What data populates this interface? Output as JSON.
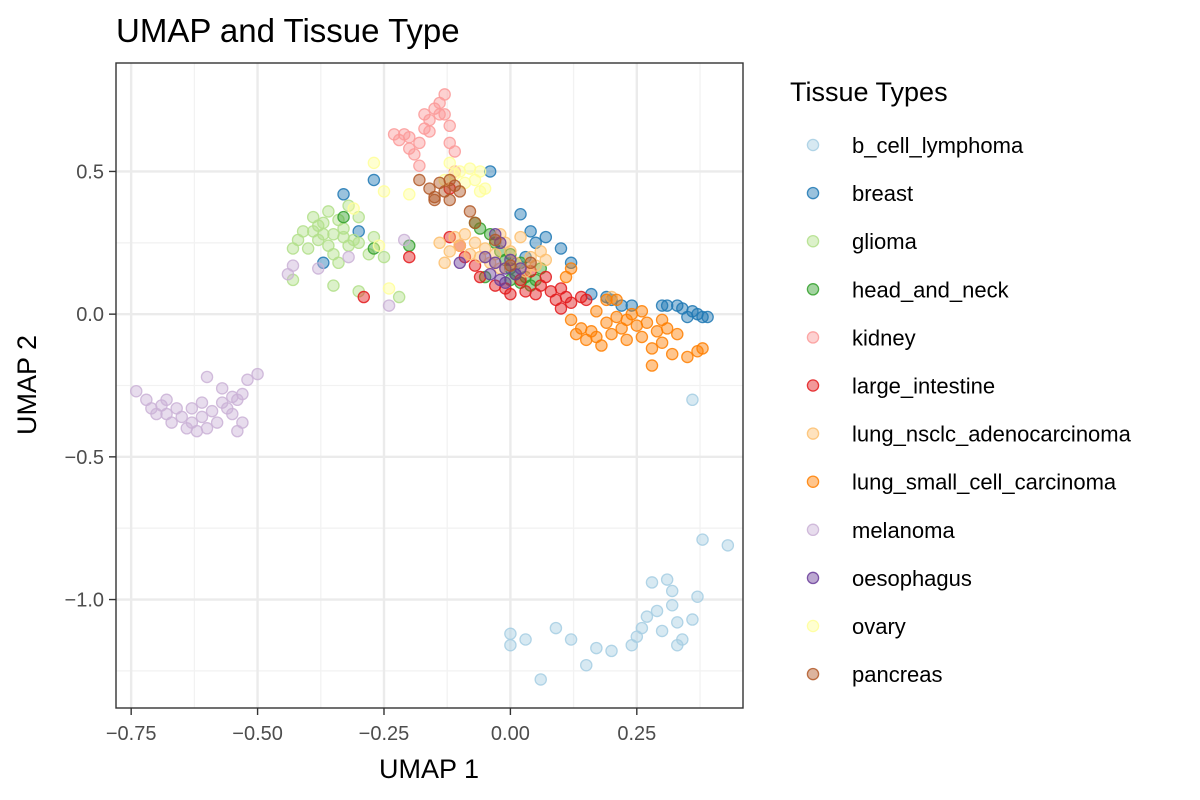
{
  "chart_data": {
    "type": "scatter",
    "title": "UMAP and Tissue Type",
    "xlabel": "UMAP 1",
    "ylabel": "UMAP 2",
    "xlim": [
      -0.78,
      0.46
    ],
    "ylim": [
      -1.38,
      0.88
    ],
    "x_ticks": [
      {
        "v": -0.75,
        "label": "−0.75"
      },
      {
        "v": -0.5,
        "label": "−0.50"
      },
      {
        "v": -0.25,
        "label": "−0.25"
      },
      {
        "v": 0.0,
        "label": "0.00"
      },
      {
        "v": 0.25,
        "label": "0.25"
      }
    ],
    "y_ticks": [
      {
        "v": 0.5,
        "label": "0.5"
      },
      {
        "v": 0.0,
        "label": "0.0"
      },
      {
        "v": -0.5,
        "label": "−0.5"
      },
      {
        "v": -1.0,
        "label": "−1.0"
      }
    ],
    "grid": true,
    "legend": {
      "title": "Tissue Types",
      "position": "right"
    },
    "series": [
      {
        "name": "b_cell_lymphoma",
        "color": "#A6CEE3",
        "points": [
          [
            0.0,
            -1.12
          ],
          [
            0.0,
            -1.16
          ],
          [
            0.03,
            -1.14
          ],
          [
            0.06,
            -1.28
          ],
          [
            0.09,
            -1.1
          ],
          [
            0.12,
            -1.14
          ],
          [
            0.15,
            -1.23
          ],
          [
            0.17,
            -1.17
          ],
          [
            0.2,
            -1.18
          ],
          [
            0.24,
            -1.16
          ],
          [
            0.25,
            -1.13
          ],
          [
            0.26,
            -1.1
          ],
          [
            0.27,
            -1.06
          ],
          [
            0.28,
            -0.94
          ],
          [
            0.29,
            -1.04
          ],
          [
            0.3,
            -1.11
          ],
          [
            0.31,
            -0.93
          ],
          [
            0.32,
            -1.02
          ],
          [
            0.32,
            -0.97
          ],
          [
            0.33,
            -1.08
          ],
          [
            0.33,
            -1.16
          ],
          [
            0.34,
            -1.14
          ],
          [
            0.36,
            -1.07
          ],
          [
            0.37,
            -0.99
          ],
          [
            0.38,
            -0.79
          ],
          [
            0.43,
            -0.81
          ],
          [
            0.36,
            -0.3
          ]
        ]
      },
      {
        "name": "breast",
        "color": "#1F78B4",
        "points": [
          [
            0.35,
            -0.01
          ],
          [
            0.36,
            0.01
          ],
          [
            0.37,
            0.0
          ],
          [
            0.38,
            -0.01
          ],
          [
            0.39,
            -0.01
          ],
          [
            0.34,
            0.02
          ],
          [
            0.33,
            0.03
          ],
          [
            0.31,
            0.03
          ],
          [
            0.3,
            0.03
          ],
          [
            0.24,
            0.03
          ],
          [
            0.22,
            0.03
          ],
          [
            0.2,
            0.05
          ],
          [
            0.19,
            0.06
          ],
          [
            0.16,
            0.07
          ],
          [
            0.12,
            0.18
          ],
          [
            0.1,
            0.23
          ],
          [
            0.07,
            0.27
          ],
          [
            0.05,
            0.25
          ],
          [
            0.04,
            0.29
          ],
          [
            0.02,
            0.35
          ],
          [
            0.03,
            0.2
          ],
          [
            -0.04,
            0.5
          ],
          [
            -0.27,
            0.47
          ],
          [
            -0.33,
            0.42
          ],
          [
            -0.37,
            0.18
          ],
          [
            -0.3,
            0.29
          ]
        ]
      },
      {
        "name": "glioma",
        "color": "#B2DF8A",
        "points": [
          [
            -0.43,
            0.12
          ],
          [
            -0.43,
            0.23
          ],
          [
            -0.42,
            0.26
          ],
          [
            -0.41,
            0.29
          ],
          [
            -0.4,
            0.23
          ],
          [
            -0.39,
            0.29
          ],
          [
            -0.39,
            0.34
          ],
          [
            -0.38,
            0.26
          ],
          [
            -0.38,
            0.31
          ],
          [
            -0.37,
            0.28
          ],
          [
            -0.37,
            0.32
          ],
          [
            -0.36,
            0.24
          ],
          [
            -0.36,
            0.36
          ],
          [
            -0.35,
            0.28
          ],
          [
            -0.35,
            0.21
          ],
          [
            -0.34,
            0.18
          ],
          [
            -0.34,
            0.33
          ],
          [
            -0.33,
            0.27
          ],
          [
            -0.33,
            0.3
          ],
          [
            -0.32,
            0.24
          ],
          [
            -0.32,
            0.38
          ],
          [
            -0.31,
            0.26
          ],
          [
            -0.3,
            0.25
          ],
          [
            -0.3,
            0.34
          ],
          [
            -0.35,
            0.1
          ],
          [
            -0.3,
            0.08
          ],
          [
            -0.27,
            0.27
          ],
          [
            -0.28,
            0.21
          ],
          [
            -0.25,
            0.2
          ],
          [
            -0.22,
            0.06
          ]
        ]
      },
      {
        "name": "head_and_neck",
        "color": "#33A02C",
        "points": [
          [
            -0.33,
            0.34
          ],
          [
            -0.27,
            0.23
          ],
          [
            -0.2,
            0.24
          ],
          [
            -0.07,
            0.32
          ],
          [
            -0.06,
            0.3
          ],
          [
            -0.04,
            0.28
          ],
          [
            -0.03,
            0.25
          ],
          [
            -0.02,
            0.22
          ],
          [
            -0.01,
            0.19
          ],
          [
            0.0,
            0.16
          ],
          [
            0.0,
            0.12
          ],
          [
            0.01,
            0.14
          ],
          [
            0.02,
            0.11
          ],
          [
            0.03,
            0.13
          ],
          [
            0.04,
            0.1
          ],
          [
            0.05,
            0.12
          ],
          [
            0.02,
            0.18
          ],
          [
            0.06,
            0.16
          ],
          [
            0.0,
            0.21
          ],
          [
            -0.05,
            0.13
          ]
        ]
      },
      {
        "name": "kidney",
        "color": "#FB9A99",
        "points": [
          [
            -0.23,
            0.63
          ],
          [
            -0.22,
            0.61
          ],
          [
            -0.21,
            0.63
          ],
          [
            -0.2,
            0.58
          ],
          [
            -0.2,
            0.62
          ],
          [
            -0.19,
            0.56
          ],
          [
            -0.18,
            0.6
          ],
          [
            -0.18,
            0.52
          ],
          [
            -0.17,
            0.65
          ],
          [
            -0.17,
            0.7
          ],
          [
            -0.16,
            0.64
          ],
          [
            -0.16,
            0.68
          ],
          [
            -0.15,
            0.72
          ],
          [
            -0.14,
            0.7
          ],
          [
            -0.14,
            0.74
          ],
          [
            -0.13,
            0.77
          ],
          [
            -0.13,
            0.7
          ],
          [
            -0.12,
            0.66
          ],
          [
            -0.12,
            0.6
          ],
          [
            -0.11,
            0.57
          ],
          [
            -0.11,
            0.5
          ]
        ]
      },
      {
        "name": "large_intestine",
        "color": "#E31A1C",
        "points": [
          [
            -0.29,
            0.06
          ],
          [
            -0.2,
            0.2
          ],
          [
            -0.12,
            0.27
          ],
          [
            -0.1,
            0.24
          ],
          [
            -0.09,
            0.2
          ],
          [
            -0.07,
            0.17
          ],
          [
            -0.06,
            0.13
          ],
          [
            -0.03,
            0.1
          ],
          [
            -0.01,
            0.09
          ],
          [
            0.0,
            0.07
          ],
          [
            0.02,
            0.12
          ],
          [
            0.03,
            0.08
          ],
          [
            0.05,
            0.07
          ],
          [
            0.06,
            0.1
          ],
          [
            0.08,
            0.08
          ],
          [
            0.09,
            0.05
          ],
          [
            0.1,
            0.09
          ],
          [
            0.11,
            0.06
          ],
          [
            0.12,
            0.04
          ],
          [
            0.14,
            0.06
          ],
          [
            0.15,
            0.05
          ],
          [
            0.1,
            0.02
          ],
          [
            0.04,
            0.15
          ],
          [
            0.07,
            0.13
          ],
          [
            -0.12,
            0.44
          ]
        ]
      },
      {
        "name": "lung_nsclc_adenocarcinoma",
        "color": "#FDBF6F",
        "points": [
          [
            -0.14,
            0.25
          ],
          [
            -0.12,
            0.22
          ],
          [
            -0.11,
            0.27
          ],
          [
            -0.1,
            0.24
          ],
          [
            -0.09,
            0.28
          ],
          [
            -0.08,
            0.21
          ],
          [
            -0.07,
            0.25
          ],
          [
            -0.06,
            0.2
          ],
          [
            -0.05,
            0.23
          ],
          [
            -0.04,
            0.18
          ],
          [
            -0.03,
            0.21
          ],
          [
            -0.02,
            0.16
          ],
          [
            -0.01,
            0.25
          ],
          [
            0.0,
            0.22
          ],
          [
            0.01,
            0.18
          ],
          [
            0.02,
            0.27
          ],
          [
            0.03,
            0.15
          ],
          [
            0.04,
            0.2
          ],
          [
            0.05,
            0.17
          ],
          [
            0.06,
            0.22
          ],
          [
            -0.13,
            0.18
          ],
          [
            -0.02,
            0.28
          ],
          [
            0.07,
            0.19
          ],
          [
            0.2,
            0.06
          ]
        ]
      },
      {
        "name": "lung_small_cell_carcinoma",
        "color": "#FF7F00",
        "points": [
          [
            0.12,
            -0.02
          ],
          [
            0.13,
            -0.07
          ],
          [
            0.14,
            -0.05
          ],
          [
            0.15,
            -0.09
          ],
          [
            0.16,
            -0.06
          ],
          [
            0.17,
            -0.08
          ],
          [
            0.18,
            -0.11
          ],
          [
            0.19,
            -0.03
          ],
          [
            0.2,
            -0.07
          ],
          [
            0.21,
            -0.01
          ],
          [
            0.22,
            -0.05
          ],
          [
            0.23,
            -0.09
          ],
          [
            0.24,
            0.0
          ],
          [
            0.25,
            -0.04
          ],
          [
            0.26,
            -0.08
          ],
          [
            0.27,
            -0.03
          ],
          [
            0.28,
            -0.12
          ],
          [
            0.29,
            -0.06
          ],
          [
            0.3,
            -0.1
          ],
          [
            0.31,
            -0.05
          ],
          [
            0.32,
            -0.14
          ],
          [
            0.33,
            -0.07
          ],
          [
            0.28,
            -0.18
          ],
          [
            0.37,
            -0.13
          ],
          [
            0.38,
            -0.12
          ],
          [
            0.35,
            -0.15
          ],
          [
            0.23,
            -0.02
          ],
          [
            0.19,
            0.05
          ],
          [
            0.17,
            0.01
          ],
          [
            0.21,
            0.05
          ],
          [
            0.12,
            0.16
          ],
          [
            0.11,
            0.13
          ],
          [
            0.26,
            0.01
          ],
          [
            0.3,
            -0.02
          ]
        ]
      },
      {
        "name": "melanoma",
        "color": "#CAB2D6",
        "points": [
          [
            -0.74,
            -0.27
          ],
          [
            -0.72,
            -0.3
          ],
          [
            -0.71,
            -0.33
          ],
          [
            -0.7,
            -0.35
          ],
          [
            -0.69,
            -0.32
          ],
          [
            -0.68,
            -0.3
          ],
          [
            -0.68,
            -0.35
          ],
          [
            -0.67,
            -0.38
          ],
          [
            -0.66,
            -0.33
          ],
          [
            -0.65,
            -0.36
          ],
          [
            -0.64,
            -0.4
          ],
          [
            -0.63,
            -0.33
          ],
          [
            -0.63,
            -0.38
          ],
          [
            -0.62,
            -0.41
          ],
          [
            -0.61,
            -0.36
          ],
          [
            -0.61,
            -0.31
          ],
          [
            -0.6,
            -0.22
          ],
          [
            -0.6,
            -0.4
          ],
          [
            -0.59,
            -0.34
          ],
          [
            -0.58,
            -0.38
          ],
          [
            -0.57,
            -0.31
          ],
          [
            -0.57,
            -0.26
          ],
          [
            -0.56,
            -0.33
          ],
          [
            -0.55,
            -0.35
          ],
          [
            -0.55,
            -0.29
          ],
          [
            -0.54,
            -0.3
          ],
          [
            -0.54,
            -0.41
          ],
          [
            -0.53,
            -0.38
          ],
          [
            -0.53,
            -0.28
          ],
          [
            -0.52,
            -0.23
          ],
          [
            -0.5,
            -0.21
          ],
          [
            -0.44,
            0.14
          ],
          [
            -0.43,
            0.17
          ],
          [
            -0.38,
            0.16
          ],
          [
            -0.32,
            0.2
          ],
          [
            -0.24,
            0.03
          ],
          [
            -0.21,
            0.26
          ]
        ]
      },
      {
        "name": "oesophagus",
        "color": "#6A3D9A",
        "points": [
          [
            -0.03,
            0.28
          ],
          [
            -0.02,
            0.25
          ],
          [
            -0.04,
            0.14
          ],
          [
            -0.03,
            0.18
          ],
          [
            -0.02,
            0.12
          ],
          [
            -0.01,
            0.16
          ],
          [
            0.0,
            0.19
          ],
          [
            0.01,
            0.14
          ],
          [
            -0.01,
            0.11
          ],
          [
            0.02,
            0.16
          ],
          [
            -0.05,
            0.2
          ],
          [
            -0.1,
            0.18
          ]
        ]
      },
      {
        "name": "ovary",
        "color": "#FFFF99",
        "points": [
          [
            -0.27,
            0.53
          ],
          [
            -0.25,
            0.43
          ],
          [
            -0.26,
            0.24
          ],
          [
            -0.13,
            0.47
          ],
          [
            -0.12,
            0.53
          ],
          [
            -0.11,
            0.49
          ],
          [
            -0.1,
            0.5
          ],
          [
            -0.09,
            0.46
          ],
          [
            -0.08,
            0.51
          ],
          [
            -0.07,
            0.47
          ],
          [
            -0.06,
            0.5
          ],
          [
            -0.05,
            0.44
          ],
          [
            -0.06,
            0.43
          ],
          [
            -0.31,
            0.37
          ],
          [
            -0.24,
            0.09
          ],
          [
            -0.2,
            0.42
          ]
        ]
      },
      {
        "name": "pancreas",
        "color": "#B15928",
        "points": [
          [
            -0.18,
            0.47
          ],
          [
            -0.16,
            0.44
          ],
          [
            -0.15,
            0.41
          ],
          [
            -0.14,
            0.46
          ],
          [
            -0.13,
            0.43
          ],
          [
            -0.12,
            0.47
          ],
          [
            -0.11,
            0.45
          ],
          [
            -0.1,
            0.43
          ],
          [
            -0.12,
            0.4
          ],
          [
            -0.15,
            0.4
          ],
          [
            -0.08,
            0.36
          ],
          [
            -0.07,
            0.32
          ],
          [
            -0.03,
            0.26
          ],
          [
            0.0,
            0.17
          ],
          [
            0.04,
            0.18
          ]
        ]
      }
    ]
  }
}
